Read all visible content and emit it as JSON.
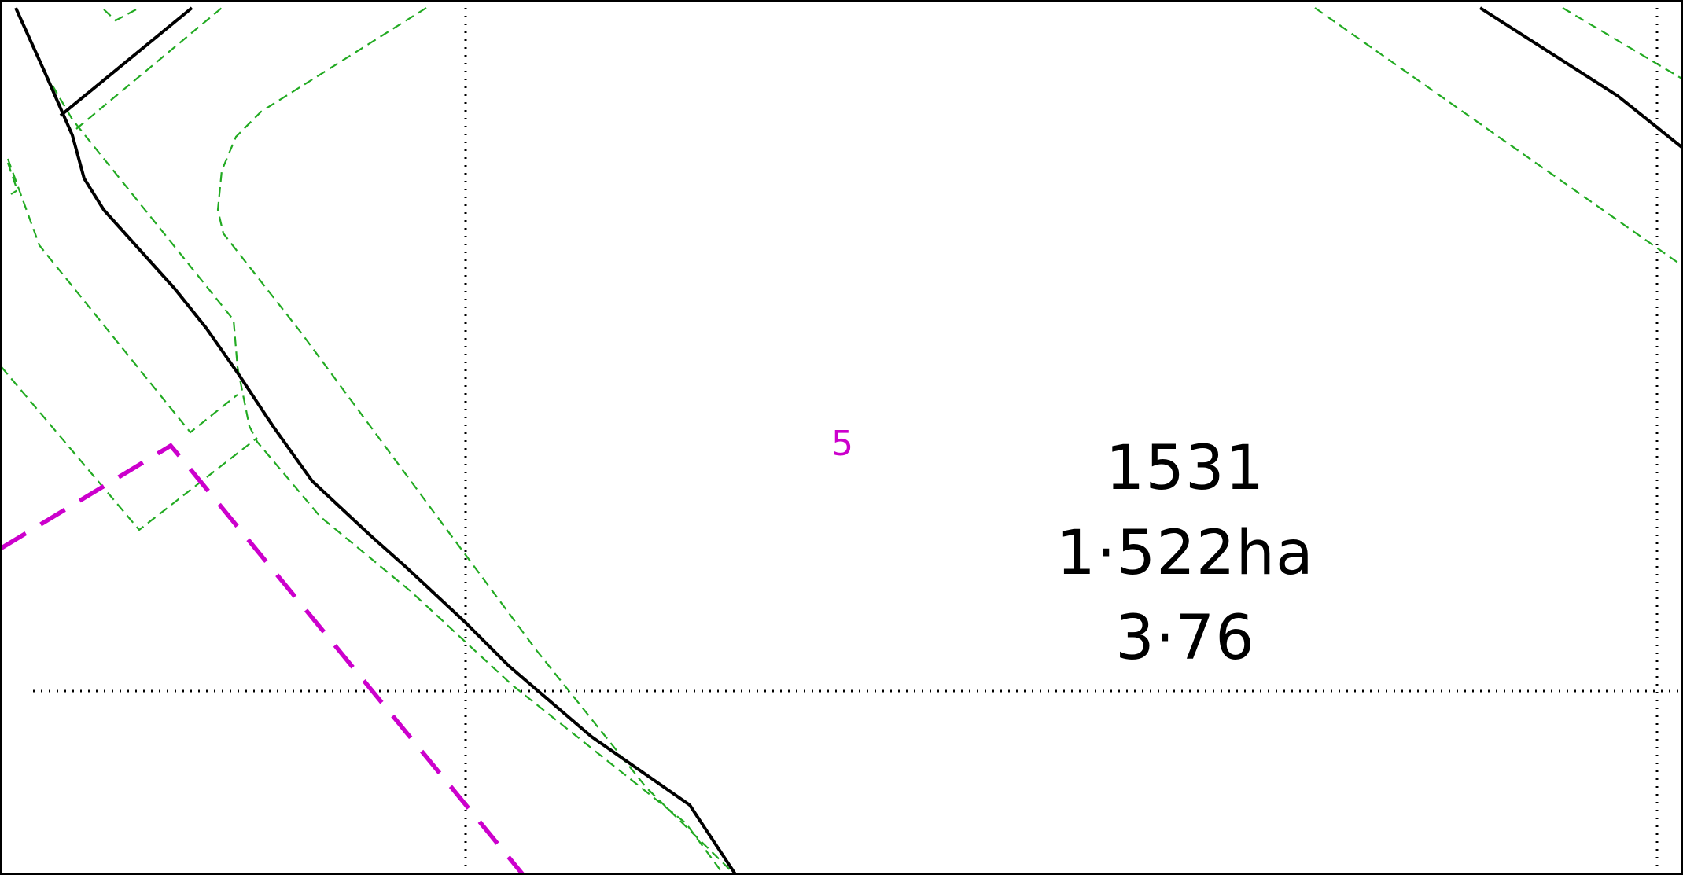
{
  "map": {
    "sheet_number": "5",
    "parcel": {
      "number": "1531",
      "area_hectares": "1·522ha",
      "area_acres": "3·76"
    },
    "colors": {
      "boundary_line": "#000000",
      "dashed_feature": "#22aa22",
      "admin_boundary": "#cc00cc",
      "grid_line": "#000000"
    }
  }
}
